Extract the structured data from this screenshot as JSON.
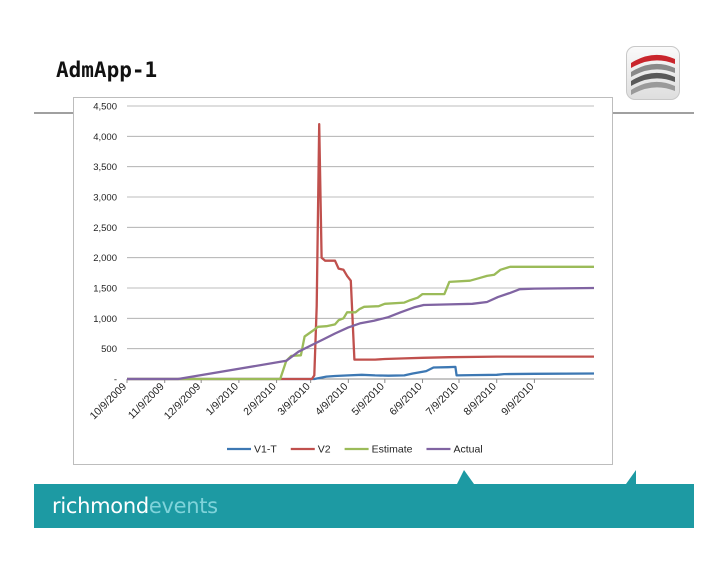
{
  "slide": {
    "title": "AdmApp-1"
  },
  "footer": {
    "brand_part1": "richmond",
    "brand_part2": "events"
  },
  "colors": {
    "footer_band": "#1d9aa3",
    "v1t": "#3d78b3",
    "v2": "#c0504d",
    "estimate": "#9bbb59",
    "actual": "#8064a2"
  },
  "icons": {
    "logo": "richmond-swoosh-logo-icon"
  },
  "chart_data": {
    "type": "line",
    "title": "",
    "xlabel": "",
    "ylabel": "",
    "ylim": [
      0,
      4500
    ],
    "yticks": [
      0,
      500,
      1000,
      1500,
      2000,
      2500,
      3000,
      3500,
      4000,
      4500
    ],
    "ytick_labels": [
      "-",
      "500",
      "1,000",
      "1,500",
      "2,000",
      "2,500",
      "3,000",
      "3,500",
      "4,000",
      "4,500"
    ],
    "xlim": [
      "2009-10-09",
      "2010-10-28"
    ],
    "xtick_labels": [
      "10/9/2009",
      "11/9/2009",
      "12/9/2009",
      "1/9/2010",
      "2/9/2010",
      "3/9/2010",
      "4/9/2010",
      "5/9/2010",
      "6/9/2010",
      "7/9/2010",
      "8/9/2010",
      "9/9/2010"
    ],
    "grid": true,
    "legend": "bottom",
    "series": [
      {
        "name": "V1-T",
        "points": [
          [
            "2009-10-09",
            0
          ],
          [
            "2010-03-12",
            0
          ],
          [
            "2010-03-22",
            40
          ],
          [
            "2010-03-29",
            50
          ],
          [
            "2010-04-09",
            60
          ],
          [
            "2010-04-20",
            70
          ],
          [
            "2010-05-01",
            60
          ],
          [
            "2010-05-12",
            55
          ],
          [
            "2010-05-25",
            60
          ],
          [
            "2010-06-01",
            90
          ],
          [
            "2010-06-12",
            130
          ],
          [
            "2010-06-18",
            190
          ],
          [
            "2010-06-30",
            195
          ],
          [
            "2010-07-06",
            200
          ],
          [
            "2010-07-07",
            60
          ],
          [
            "2010-07-20",
            65
          ],
          [
            "2010-08-09",
            70
          ],
          [
            "2010-08-15",
            80
          ],
          [
            "2010-09-09",
            85
          ],
          [
            "2010-10-28",
            90
          ]
        ]
      },
      {
        "name": "V2",
        "points": [
          [
            "2009-10-09",
            0
          ],
          [
            "2010-03-10",
            0
          ],
          [
            "2010-03-12",
            60
          ],
          [
            "2010-03-14",
            1200
          ],
          [
            "2010-03-16",
            4200
          ],
          [
            "2010-03-18",
            2000
          ],
          [
            "2010-03-21",
            1950
          ],
          [
            "2010-03-29",
            1950
          ],
          [
            "2010-04-01",
            1820
          ],
          [
            "2010-04-05",
            1800
          ],
          [
            "2010-04-08",
            1700
          ],
          [
            "2010-04-11",
            1620
          ],
          [
            "2010-04-14",
            320
          ],
          [
            "2010-05-01",
            320
          ],
          [
            "2010-05-09",
            330
          ],
          [
            "2010-05-25",
            340
          ],
          [
            "2010-06-09",
            350
          ],
          [
            "2010-07-01",
            360
          ],
          [
            "2010-08-09",
            370
          ],
          [
            "2010-10-28",
            370
          ]
        ]
      },
      {
        "name": "Estimate",
        "points": [
          [
            "2009-10-09",
            0
          ],
          [
            "2010-02-12",
            0
          ],
          [
            "2010-02-17",
            300
          ],
          [
            "2010-02-21",
            380
          ],
          [
            "2010-03-01",
            390
          ],
          [
            "2010-03-04",
            700
          ],
          [
            "2010-03-11",
            800
          ],
          [
            "2010-03-15",
            860
          ],
          [
            "2010-03-22",
            870
          ],
          [
            "2010-03-29",
            900
          ],
          [
            "2010-04-01",
            970
          ],
          [
            "2010-04-05",
            1000
          ],
          [
            "2010-04-08",
            1100
          ],
          [
            "2010-04-15",
            1100
          ],
          [
            "2010-04-18",
            1150
          ],
          [
            "2010-04-22",
            1190
          ],
          [
            "2010-05-04",
            1200
          ],
          [
            "2010-05-09",
            1240
          ],
          [
            "2010-05-25",
            1260
          ],
          [
            "2010-05-30",
            1300
          ],
          [
            "2010-06-05",
            1340
          ],
          [
            "2010-06-09",
            1400
          ],
          [
            "2010-06-27",
            1400
          ],
          [
            "2010-07-01",
            1600
          ],
          [
            "2010-07-18",
            1620
          ],
          [
            "2010-07-25",
            1660
          ],
          [
            "2010-08-01",
            1700
          ],
          [
            "2010-08-07",
            1720
          ],
          [
            "2010-08-12",
            1800
          ],
          [
            "2010-08-20",
            1850
          ],
          [
            "2010-10-28",
            1850
          ]
        ]
      },
      {
        "name": "Actual",
        "points": [
          [
            "2009-10-09",
            0
          ],
          [
            "2009-11-20",
            0
          ],
          [
            "2010-02-17",
            300
          ],
          [
            "2010-02-27",
            450
          ],
          [
            "2010-03-09",
            550
          ],
          [
            "2010-03-19",
            650
          ],
          [
            "2010-03-29",
            750
          ],
          [
            "2010-04-09",
            850
          ],
          [
            "2010-04-19",
            920
          ],
          [
            "2010-04-30",
            960
          ],
          [
            "2010-05-12",
            1020
          ],
          [
            "2010-05-22",
            1100
          ],
          [
            "2010-06-02",
            1180
          ],
          [
            "2010-06-10",
            1220
          ],
          [
            "2010-07-01",
            1230
          ],
          [
            "2010-07-20",
            1240
          ],
          [
            "2010-08-01",
            1270
          ],
          [
            "2010-08-10",
            1350
          ],
          [
            "2010-08-20",
            1420
          ],
          [
            "2010-08-28",
            1480
          ],
          [
            "2010-09-09",
            1490
          ],
          [
            "2010-10-28",
            1500
          ]
        ]
      }
    ]
  }
}
